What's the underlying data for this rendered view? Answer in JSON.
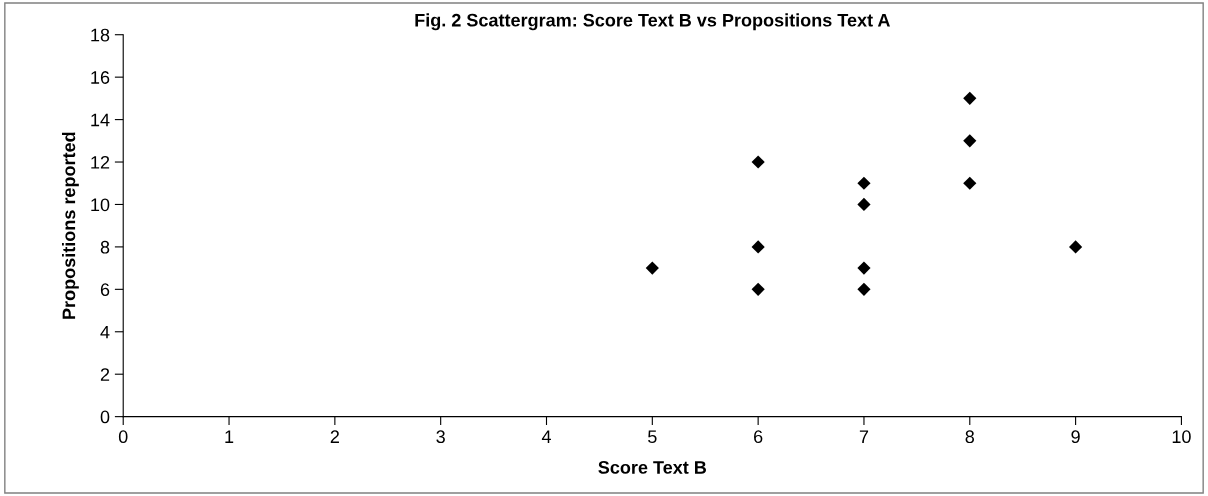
{
  "chart_data": {
    "type": "scatter",
    "title": "Fig. 2 Scattergram: Score Text B vs Propositions Text A",
    "xlabel": "Score Text B",
    "ylabel": "Propositions reported",
    "series": [
      {
        "color": "#000000",
        "x": [
          5,
          6,
          6,
          6,
          7,
          7,
          7,
          7,
          8,
          8,
          8,
          9
        ],
        "values": [
          7,
          12,
          8,
          6,
          11,
          10,
          7,
          6,
          15,
          13,
          11,
          8
        ]
      }
    ],
    "xlim": [
      0,
      10
    ],
    "xticks": [
      0,
      1,
      2,
      3,
      4,
      5,
      6,
      7,
      8,
      9,
      10
    ],
    "ylim": [
      0,
      18
    ],
    "yticks": [
      0,
      2,
      4,
      6,
      8,
      10,
      12,
      14,
      16,
      18
    ],
    "marker": "diamond",
    "grid": false,
    "legend": false
  }
}
